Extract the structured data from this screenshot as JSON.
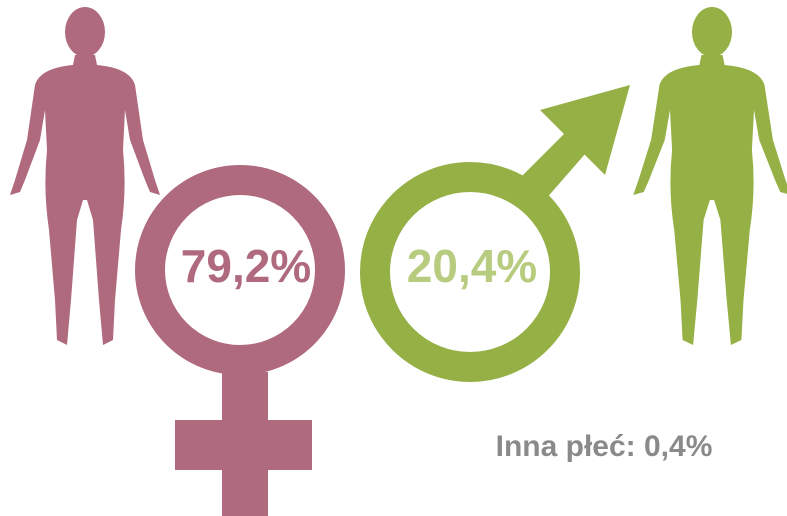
{
  "female": {
    "label": "79,2%"
  },
  "male": {
    "label": "20,4%"
  },
  "other": {
    "label": "Inna płeć: 0,4%"
  }
}
